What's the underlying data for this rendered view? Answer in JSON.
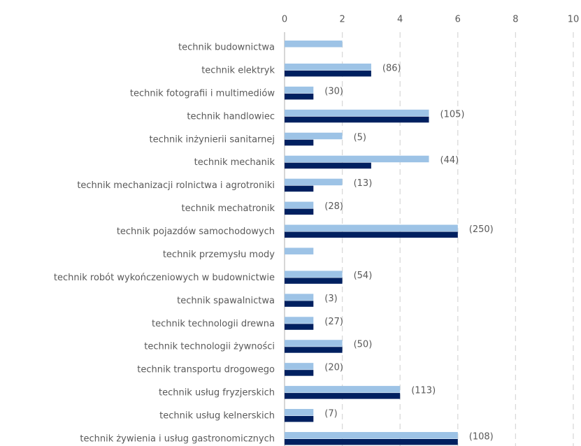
{
  "chart_data": {
    "type": "barh",
    "categories": [
      "technik budownictwa",
      "technik elektryk",
      "technik fotografii i multimediów",
      "technik handlowiec",
      "technik inżynierii sanitarnej",
      "technik mechanik",
      "technik mechanizacji rolnictwa i agrotroniki",
      "technik mechatronik",
      "technik pojazdów samochodowych",
      "technik przemysłu mody",
      "technik robót wykończeniowych w budownictwie",
      "technik spawalnictwa",
      "technik technologii drewna",
      "technik technologii żywności",
      "technik transportu drogowego",
      "technik usług fryzjerskich",
      "technik usług kelnerskich",
      "technik żywienia i usług gastronomicznych"
    ],
    "series": [
      {
        "color": "#9dc3e6",
        "values": [
          2,
          3,
          1,
          5,
          2,
          5,
          2,
          1,
          6,
          1,
          2,
          1,
          1,
          2,
          1,
          4,
          1,
          6
        ]
      },
      {
        "color": "#002060",
        "values": [
          0,
          3,
          1,
          5,
          1,
          3,
          1,
          1,
          6,
          0,
          2,
          1,
          1,
          2,
          1,
          4,
          1,
          6
        ]
      }
    ],
    "annotations": [
      null,
      "(86)",
      "(30)",
      "(105)",
      "(5)",
      "(44)",
      "(13)",
      "(28)",
      "(250)",
      null,
      "(54)",
      "(3)",
      "(27)",
      "(50)",
      "(20)",
      "(113)",
      "(7)",
      "(108)"
    ],
    "xlim": [
      0,
      10
    ],
    "xticks": [
      0,
      2,
      4,
      6,
      8,
      10
    ],
    "grid": true
  }
}
